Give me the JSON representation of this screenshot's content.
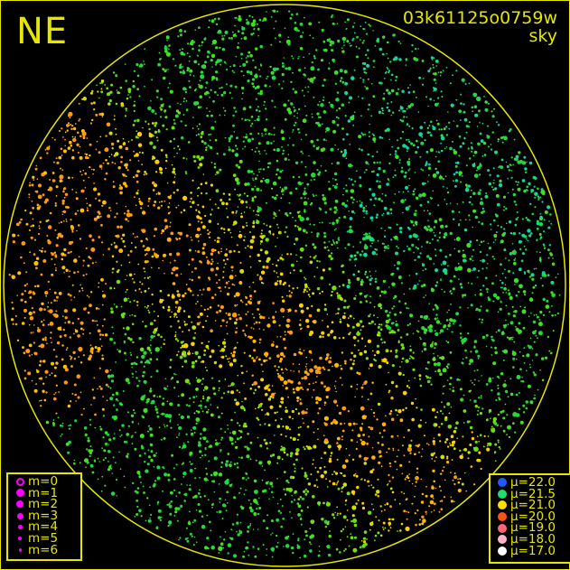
{
  "direction_label": "NE",
  "image_id": "03k61125o0759w",
  "image_type": "sky",
  "colors": {
    "frame": "#e6e600",
    "background": "#000000",
    "magnitude_symbol": "#ff00ff"
  },
  "magnitude_legend": [
    {
      "label": "m=0",
      "symbol": "open-circle"
    },
    {
      "label": "m=1",
      "symbol": "filled-circle"
    },
    {
      "label": "m=2",
      "symbol": "filled-circle"
    },
    {
      "label": "m=3",
      "symbol": "filled-circle"
    },
    {
      "label": "m=4",
      "symbol": "filled-circle"
    },
    {
      "label": "m=5",
      "symbol": "filled-circle"
    },
    {
      "label": "m=6",
      "symbol": "filled-circle"
    }
  ],
  "brightness_legend": [
    {
      "label": "μ=22.0",
      "color": "#1e5aff"
    },
    {
      "label": "μ=21.5",
      "color": "#1edc6e"
    },
    {
      "label": "μ=21.0",
      "color": "#ffdc00"
    },
    {
      "label": "μ=20.0",
      "color": "#ff5014"
    },
    {
      "label": "μ=19.0",
      "color": "#ff6478"
    },
    {
      "label": "μ=18.0",
      "color": "#ffb4c8"
    },
    {
      "label": "μ=17.0",
      "color": "#ffffff"
    }
  ]
}
